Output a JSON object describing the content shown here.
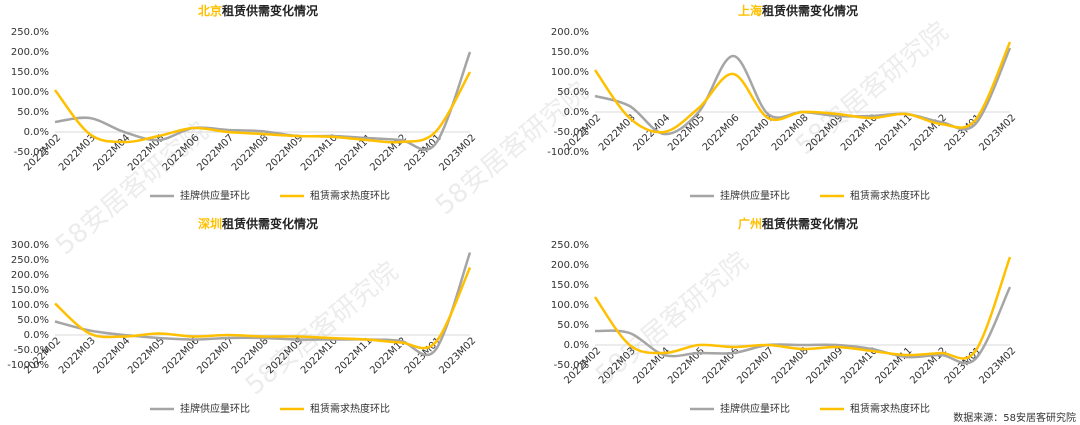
{
  "chart_data": [
    {
      "type": "line",
      "title": {
        "highlight": "北京",
        "text": "租赁供需变化情况"
      },
      "categories": [
        "2022M02",
        "2022M03",
        "2022M04",
        "2022M05",
        "2022M06",
        "2022M07",
        "2022M08",
        "2022M09",
        "2022M10",
        "2022M11",
        "2022M12",
        "2023M01",
        "2023M02"
      ],
      "series": [
        {
          "name": "挂牌供应量环比",
          "color": "#a5a5a5",
          "values": [
            25,
            35,
            0,
            -20,
            10,
            5,
            2,
            -10,
            -10,
            -15,
            -20,
            -30,
            200
          ]
        },
        {
          "name": "租赁需求热度环比",
          "color": "#ffc000",
          "values": [
            105,
            -5,
            -25,
            -10,
            10,
            0,
            -5,
            -10,
            -12,
            -20,
            -25,
            0,
            150
          ]
        }
      ],
      "ylim": [
        -50,
        250
      ],
      "yticks": [
        {
          "value": -50,
          "label": "-50.0%"
        },
        {
          "value": 0,
          "label": "0.0%"
        },
        {
          "value": 50,
          "label": "50.0%"
        },
        {
          "value": 100,
          "label": "100.0%"
        },
        {
          "value": 150,
          "label": "150.0%"
        },
        {
          "value": 200,
          "label": "200.0%"
        },
        {
          "value": 250,
          "label": "250.0%"
        }
      ],
      "grid": false,
      "legend": "bottom"
    },
    {
      "type": "line",
      "title": {
        "highlight": "上海",
        "text": "租赁供需变化情况"
      },
      "categories": [
        "2022M02",
        "2022M03",
        "2022M04",
        "2022M05",
        "2022M06",
        "2022M07",
        "2022M08",
        "2022M09",
        "2022M10",
        "2022M11",
        "2022M12",
        "2023M01",
        "2023M02"
      ],
      "series": [
        {
          "name": "挂牌供应量环比",
          "color": "#a5a5a5",
          "values": [
            40,
            15,
            -55,
            0,
            140,
            -5,
            0,
            -10,
            -10,
            -5,
            -25,
            -30,
            160
          ]
        },
        {
          "name": "租赁需求热度环比",
          "color": "#ffc000",
          "values": [
            105,
            -15,
            -50,
            10,
            95,
            -15,
            0,
            -5,
            -15,
            -5,
            -30,
            -20,
            175
          ]
        }
      ],
      "ylim": [
        -100,
        200
      ],
      "yticks": [
        {
          "value": -100,
          "label": "-100.0%"
        },
        {
          "value": -50,
          "label": "-50.0%"
        },
        {
          "value": 0,
          "label": "0.0%"
        },
        {
          "value": 50,
          "label": "50.0%"
        },
        {
          "value": 100,
          "label": "100.0%"
        },
        {
          "value": 150,
          "label": "150.0%"
        },
        {
          "value": 200,
          "label": "200.0%"
        }
      ],
      "grid": false,
      "legend": "bottom"
    },
    {
      "type": "line",
      "title": {
        "highlight": "深圳",
        "text": "租赁供需变化情况"
      },
      "categories": [
        "2022M02",
        "2022M03",
        "2022M04",
        "2022M05",
        "2022M06",
        "2022M07",
        "2022M08",
        "2022M09",
        "2022M10",
        "2022M11",
        "2022M12",
        "2023M01",
        "2023M02"
      ],
      "series": [
        {
          "name": "挂牌供应量环比",
          "color": "#a5a5a5",
          "values": [
            45,
            15,
            0,
            -10,
            -15,
            -10,
            -10,
            -15,
            -15,
            -15,
            -20,
            -50,
            275
          ]
        },
        {
          "name": "租赁需求热度环比",
          "color": "#ffc000",
          "values": [
            105,
            5,
            -5,
            5,
            -5,
            0,
            -5,
            -5,
            -10,
            -15,
            -25,
            -25,
            225
          ]
        }
      ],
      "ylim": [
        -100,
        300
      ],
      "yticks": [
        {
          "value": -100,
          "label": "-100.0%"
        },
        {
          "value": -50,
          "label": "-50.0%"
        },
        {
          "value": 0,
          "label": "0.0%"
        },
        {
          "value": 50,
          "label": "50.0%"
        },
        {
          "value": 100,
          "label": "100.0%"
        },
        {
          "value": 150,
          "label": "150.0%"
        },
        {
          "value": 200,
          "label": "200.0%"
        },
        {
          "value": 250,
          "label": "250.0%"
        },
        {
          "value": 300,
          "label": "300.0%"
        }
      ],
      "grid": false,
      "legend": "bottom"
    },
    {
      "type": "line",
      "title": {
        "highlight": "广州",
        "text": "租赁供需变化情况"
      },
      "categories": [
        "2022M02",
        "2022M03",
        "2022M04",
        "2022M05",
        "2022M06",
        "2022M07",
        "2022M08",
        "2022M09",
        "2022M10",
        "2022M11",
        "2022M12",
        "2023M01",
        "2023M02"
      ],
      "series": [
        {
          "name": "挂牌供应量环比",
          "color": "#a5a5a5",
          "values": [
            35,
            30,
            -25,
            -20,
            -20,
            0,
            0,
            0,
            -10,
            -30,
            -25,
            -35,
            145
          ]
        },
        {
          "name": "租赁需求热度环比",
          "color": "#ffc000",
          "values": [
            120,
            0,
            -20,
            0,
            -5,
            0,
            -10,
            -5,
            -15,
            -25,
            -20,
            -15,
            220
          ]
        }
      ],
      "ylim": [
        -50,
        250
      ],
      "yticks": [
        {
          "value": -50,
          "label": "-50.0%"
        },
        {
          "value": 0,
          "label": "0.0%"
        },
        {
          "value": 50,
          "label": "50.0%"
        },
        {
          "value": 100,
          "label": "100.0%"
        },
        {
          "value": 150,
          "label": "150.0%"
        },
        {
          "value": 200,
          "label": "200.0%"
        },
        {
          "value": 250,
          "label": "250.0%"
        }
      ],
      "grid": false,
      "legend": "bottom"
    }
  ],
  "source": "数据来源：58安居客研究院",
  "watermark": "58安居客研究院"
}
